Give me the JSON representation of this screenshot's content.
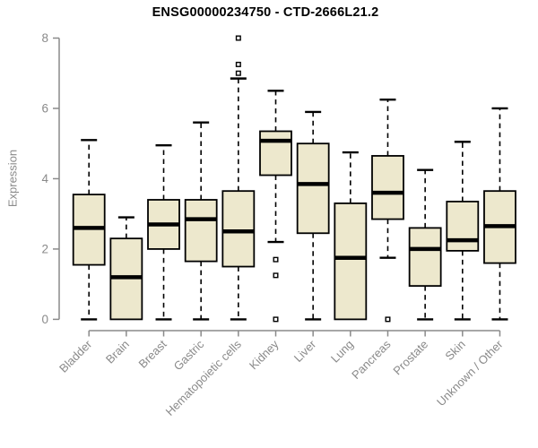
{
  "chart_data": {
    "type": "box",
    "title": "ENSG00000234750 - CTD-2666L21.2",
    "ylabel": "Expression",
    "xlabel": "",
    "ylim": [
      0,
      8
    ],
    "yticks": [
      0,
      2,
      4,
      6,
      8
    ],
    "grid": false,
    "legend": null,
    "categories": [
      "Bladder",
      "Brain",
      "Breast",
      "Gastric",
      "Hematopoietic cells",
      "Kidney",
      "Liver",
      "Lung",
      "Pancreas",
      "Prostate",
      "Skin",
      "Unknown / Other"
    ],
    "series": [
      {
        "category": "Bladder",
        "whisker_low": 0,
        "q1": 1.55,
        "median": 2.6,
        "q3": 3.55,
        "whisker_high": 5.1,
        "outliers": []
      },
      {
        "category": "Brain",
        "whisker_low": 0,
        "q1": 0,
        "median": 1.2,
        "q3": 2.3,
        "whisker_high": 2.9,
        "outliers": []
      },
      {
        "category": "Breast",
        "whisker_low": 0,
        "q1": 2.0,
        "median": 2.7,
        "q3": 3.4,
        "whisker_high": 4.95,
        "outliers": []
      },
      {
        "category": "Gastric",
        "whisker_low": 0,
        "q1": 1.65,
        "median": 2.85,
        "q3": 3.4,
        "whisker_high": 5.6,
        "outliers": []
      },
      {
        "category": "Hematopoietic cells",
        "whisker_low": 0,
        "q1": 1.5,
        "median": 2.5,
        "q3": 3.65,
        "whisker_high": 6.85,
        "outliers": [
          7.0,
          7.25,
          8.0
        ]
      },
      {
        "category": "Kidney",
        "whisker_low": 2.2,
        "q1": 4.1,
        "median": 5.08,
        "q3": 5.35,
        "whisker_high": 6.5,
        "outliers": [
          1.7,
          1.25,
          0
        ]
      },
      {
        "category": "Liver",
        "whisker_low": 0,
        "q1": 2.45,
        "median": 3.85,
        "q3": 5.0,
        "whisker_high": 5.9,
        "outliers": []
      },
      {
        "category": "Lung",
        "whisker_low": 0,
        "q1": 0,
        "median": 1.75,
        "q3": 3.3,
        "whisker_high": 4.75,
        "outliers": []
      },
      {
        "category": "Pancreas",
        "whisker_low": 1.75,
        "q1": 2.85,
        "median": 3.6,
        "q3": 4.65,
        "whisker_high": 6.25,
        "outliers": [
          0
        ]
      },
      {
        "category": "Prostate",
        "whisker_low": 0,
        "q1": 0.95,
        "median": 2.0,
        "q3": 2.6,
        "whisker_high": 4.25,
        "outliers": []
      },
      {
        "category": "Skin",
        "whisker_low": 0,
        "q1": 1.95,
        "median": 2.25,
        "q3": 3.35,
        "whisker_high": 5.05,
        "outliers": []
      },
      {
        "category": "Unknown / Other",
        "whisker_low": 0,
        "q1": 1.6,
        "median": 2.65,
        "q3": 3.65,
        "whisker_high": 6.0,
        "outliers": []
      }
    ],
    "colors": {
      "box_fill": "#EDE8CD",
      "box_stroke": "#000000",
      "median": "#000000",
      "whisker": "#000000",
      "outlier_fill": "#ffffff",
      "outlier_stroke": "#000000",
      "axis": "#8a8a8a",
      "tick_label": "#8a8a8a",
      "title": "#000000"
    }
  }
}
